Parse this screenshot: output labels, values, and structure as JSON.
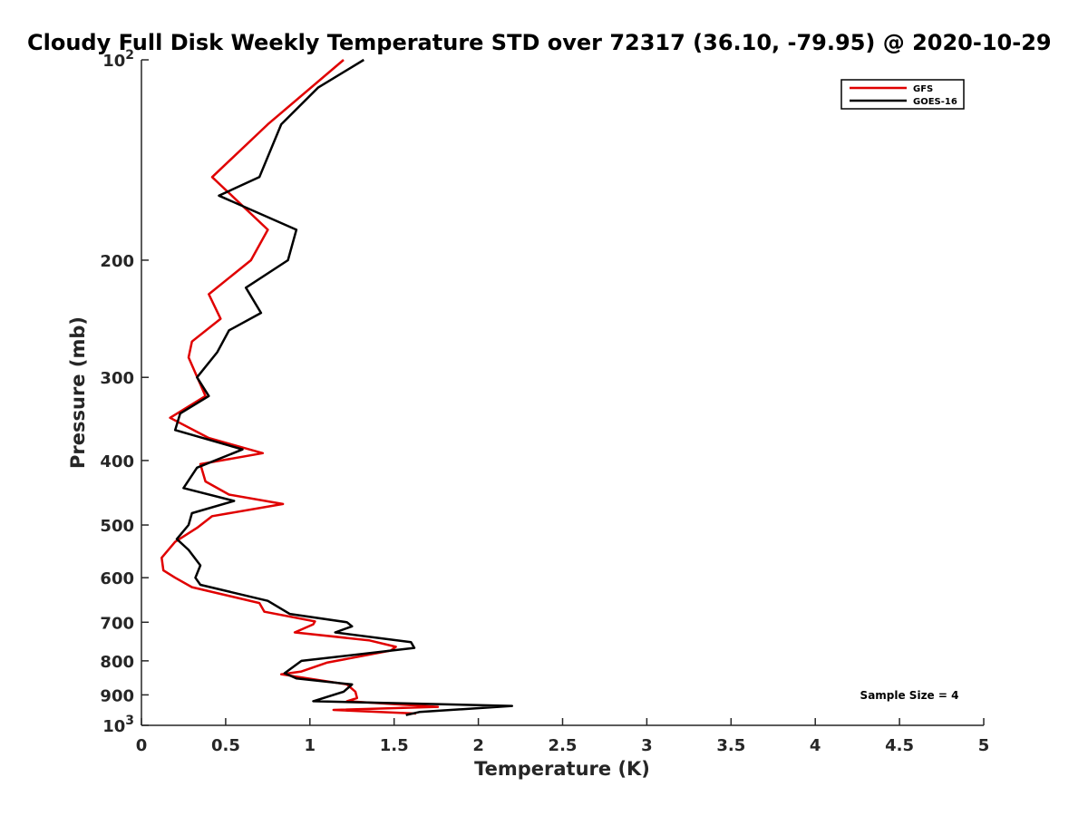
{
  "chart_data": {
    "type": "line",
    "title": "Cloudy Full Disk Weekly Temperature STD over 72317 (36.10, -79.95) @ 2020-10-29",
    "xlabel": "Temperature (K)",
    "ylabel": "Pressure (mb)",
    "xlim": [
      0,
      5
    ],
    "ylim": [
      100,
      1000
    ],
    "yscale": "log",
    "y_reversed": true,
    "grid": false,
    "legend_position": "top-right",
    "x_ticks": [
      0,
      0.5,
      1,
      1.5,
      2,
      2.5,
      3,
      3.5,
      4,
      4.5,
      5
    ],
    "x_tick_labels": [
      "0",
      "0.5",
      "1",
      "1.5",
      "2",
      "2.5",
      "3",
      "3.5",
      "4",
      "4.5",
      "5"
    ],
    "y_ticks": [
      100,
      200,
      300,
      400,
      500,
      600,
      700,
      800,
      900,
      1000
    ],
    "y_tick_labels": [
      {
        "base": "10",
        "exp": "2"
      },
      {
        "text": "200"
      },
      {
        "text": "300"
      },
      {
        "text": "400"
      },
      {
        "text": "500"
      },
      {
        "text": "600"
      },
      {
        "text": "700"
      },
      {
        "text": "800"
      },
      {
        "text": "900"
      },
      {
        "base": "10",
        "exp": "3"
      }
    ],
    "annotation": "Sample Size = 4",
    "series": [
      {
        "name": "GFS",
        "color": "#e00000",
        "points": [
          [
            1.2,
            100
          ],
          [
            0.75,
            125
          ],
          [
            0.42,
            150
          ],
          [
            0.75,
            180
          ],
          [
            0.65,
            200
          ],
          [
            0.4,
            225
          ],
          [
            0.47,
            245
          ],
          [
            0.3,
            265
          ],
          [
            0.28,
            280
          ],
          [
            0.38,
            320
          ],
          [
            0.17,
            345
          ],
          [
            0.4,
            370
          ],
          [
            0.72,
            390
          ],
          [
            0.35,
            405
          ],
          [
            0.38,
            430
          ],
          [
            0.52,
            450
          ],
          [
            0.84,
            465
          ],
          [
            0.42,
            485
          ],
          [
            0.33,
            505
          ],
          [
            0.2,
            530
          ],
          [
            0.12,
            560
          ],
          [
            0.13,
            585
          ],
          [
            0.2,
            600
          ],
          [
            0.3,
            620
          ],
          [
            0.7,
            655
          ],
          [
            0.73,
            675
          ],
          [
            1.03,
            698
          ],
          [
            1.02,
            705
          ],
          [
            0.91,
            725
          ],
          [
            1.35,
            745
          ],
          [
            1.51,
            762
          ],
          [
            1.48,
            772
          ],
          [
            1.1,
            805
          ],
          [
            0.95,
            830
          ],
          [
            0.83,
            838
          ],
          [
            1.22,
            868
          ],
          [
            1.27,
            890
          ],
          [
            1.28,
            910
          ],
          [
            1.22,
            920
          ],
          [
            1.76,
            938
          ],
          [
            1.14,
            948
          ],
          [
            1.63,
            960
          ]
        ]
      },
      {
        "name": "GOES-16",
        "color": "#000000",
        "points": [
          [
            1.32,
            100
          ],
          [
            1.05,
            110
          ],
          [
            0.83,
            125
          ],
          [
            0.7,
            150
          ],
          [
            0.46,
            160
          ],
          [
            0.92,
            180
          ],
          [
            0.87,
            200
          ],
          [
            0.62,
            220
          ],
          [
            0.71,
            240
          ],
          [
            0.52,
            255
          ],
          [
            0.45,
            275
          ],
          [
            0.33,
            300
          ],
          [
            0.4,
            320
          ],
          [
            0.23,
            340
          ],
          [
            0.2,
            360
          ],
          [
            0.6,
            385
          ],
          [
            0.33,
            410
          ],
          [
            0.25,
            440
          ],
          [
            0.55,
            460
          ],
          [
            0.3,
            480
          ],
          [
            0.28,
            500
          ],
          [
            0.21,
            525
          ],
          [
            0.28,
            545
          ],
          [
            0.35,
            575
          ],
          [
            0.32,
            600
          ],
          [
            0.35,
            615
          ],
          [
            0.75,
            650
          ],
          [
            0.88,
            680
          ],
          [
            1.22,
            700
          ],
          [
            1.25,
            710
          ],
          [
            1.15,
            725
          ],
          [
            1.6,
            750
          ],
          [
            1.62,
            765
          ],
          [
            0.95,
            800
          ],
          [
            0.85,
            835
          ],
          [
            0.92,
            850
          ],
          [
            1.25,
            868
          ],
          [
            1.2,
            890
          ],
          [
            1.02,
            920
          ],
          [
            2.2,
            935
          ],
          [
            1.65,
            955
          ],
          [
            1.57,
            965
          ]
        ]
      }
    ]
  }
}
